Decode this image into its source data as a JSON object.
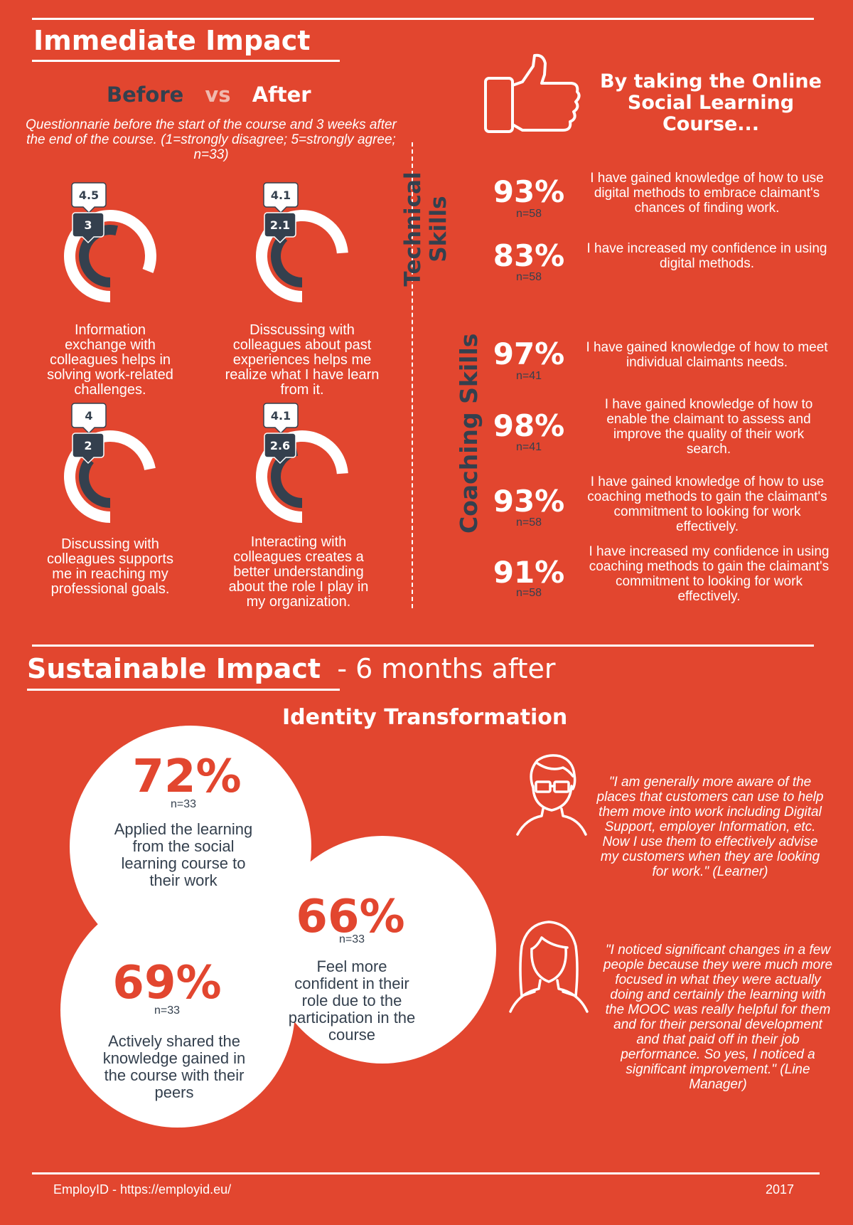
{
  "immediate": {
    "title": "Immediate Impact",
    "before_label": "Before",
    "vs_label": "vs",
    "after_label": "After",
    "note": "Questionnarie before the start of the course and 3 weeks after the end of the course. (1=strongly disagree; 5=strongly agree; n=33)",
    "gauges": [
      {
        "before": "3",
        "after": "4.5",
        "before_value": 3,
        "after_value": 4.5,
        "max": 5,
        "text": "Information exchange with colleagues helps in solving work-related challenges."
      },
      {
        "before": "2.1",
        "after": "4.1",
        "before_value": 2.1,
        "after_value": 4.1,
        "max": 5,
        "text": "Disscussing with colleagues about past experiences helps me realize what I have learn from it."
      },
      {
        "before": "2",
        "after": "4",
        "before_value": 2,
        "after_value": 4,
        "max": 5,
        "text": "Discussing with colleagues supports me in reaching my professional goals."
      },
      {
        "before": "2.6",
        "after": "4.1",
        "before_value": 2.6,
        "after_value": 4.1,
        "max": 5,
        "text": "Interacting with colleagues creates a better understanding about the role I play in my organization."
      }
    ]
  },
  "course": {
    "heading": "By taking the Online Social Learning Course...",
    "icon": "thumbs-up-icon",
    "technical_label": "Technical Skills",
    "coaching_label": "Coaching Skills",
    "technical": [
      {
        "pct": "93%",
        "n": "n=58",
        "text": "I have gained knowledge of how to use digital methods to embrace claimant's chances of finding work."
      },
      {
        "pct": "83%",
        "n": "n=58",
        "text": "I have increased my confidence in using digital methods."
      }
    ],
    "coaching": [
      {
        "pct": "97%",
        "n": "n=41",
        "text": "I have gained knowledge of how to meet individual claimants needs."
      },
      {
        "pct": "98%",
        "n": "n=41",
        "text": "I have gained knowledge of how to enable the claimant to assess and improve the quality of their work search."
      },
      {
        "pct": "93%",
        "n": "n=58",
        "text": "I have gained knowledge of how to use coaching methods to gain the claimant's commitment to looking for work effectively."
      },
      {
        "pct": "91%",
        "n": "n=58",
        "text": "I have increased my confidence in using coaching methods to gain the claimant's commitment to looking for work effectively."
      }
    ]
  },
  "sustainable": {
    "title": "Sustainable Impact",
    "subtitle": "- 6 months after",
    "heading": "Identity Transformation",
    "stats": [
      {
        "pct": "72%",
        "n": "n=33",
        "text": "Applied the learning from the social learning course to their work"
      },
      {
        "pct": "66%",
        "n": "n=33",
        "text": "Feel more confident in their role due to the participation in the course"
      },
      {
        "pct": "69%",
        "n": "n=33",
        "text": "Actively shared the knowledge gained in the course with their peers"
      }
    ],
    "quotes": [
      {
        "icon": "learner-avatar-icon",
        "text": "\"I am generally more aware of the places that customers can use to help them move into work including Digital Support, employer Information, etc. Now I use them to effectively advise my customers when they are looking for work.\" (Learner)"
      },
      {
        "icon": "manager-avatar-icon",
        "text": "\"I noticed significant changes in a few people because they were much more focused in what they were actually doing and certainly the learning with the MOOC was really helpful for them and for their personal development and that paid off in their job performance. So yes, I noticed a significant improvement.\" (Line Manager)"
      }
    ]
  },
  "footer": {
    "left": "EmployID - https://employid.eu/",
    "right": "2017"
  },
  "colors": {
    "background": "#e2462f",
    "dark": "#34404e",
    "white": "#ffffff"
  }
}
